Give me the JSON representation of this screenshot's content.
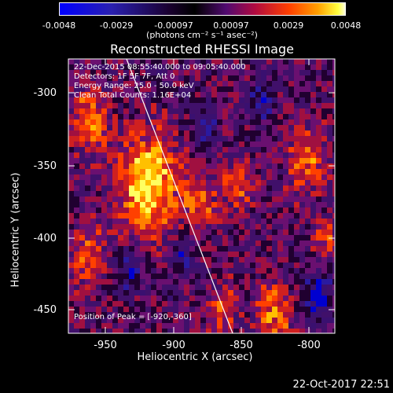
{
  "colorbar": {
    "ticks": [
      "-0.0048",
      "-0.0029",
      "-0.00097",
      "0.00097",
      "0.0029",
      "0.0048"
    ],
    "units": "(photons cm⁻² s⁻¹ asec⁻²)",
    "colors": [
      "#0000ff",
      "#3020a0",
      "#200030",
      "#000000",
      "#3a0a50",
      "#a01040",
      "#ff3000",
      "#ff9000",
      "#ffe000",
      "#ffffff"
    ]
  },
  "title": "Reconstructed RHESSI Image",
  "info": {
    "time_range": "22-Dec-2015 08:55:40.000 to 09:05:40.000",
    "detectors": "Detectors: 1F 5F 7F, Att 0",
    "energy": "Energy Range: 25.0 - 50.0 keV",
    "algorithm": "Clean    Total Counts: 1.16E+04"
  },
  "peak": "Position of Peak = [-920,-360]",
  "axes": {
    "xlabel": "Heliocentric X (arcsec)",
    "ylabel": "Heliocentric Y (arcsec)",
    "xticks": [
      "-950",
      "-900",
      "-850",
      "-800"
    ],
    "yticks": [
      "-300",
      "-350",
      "-400",
      "-450"
    ]
  },
  "footer": "22-Oct-2017 22:51"
}
